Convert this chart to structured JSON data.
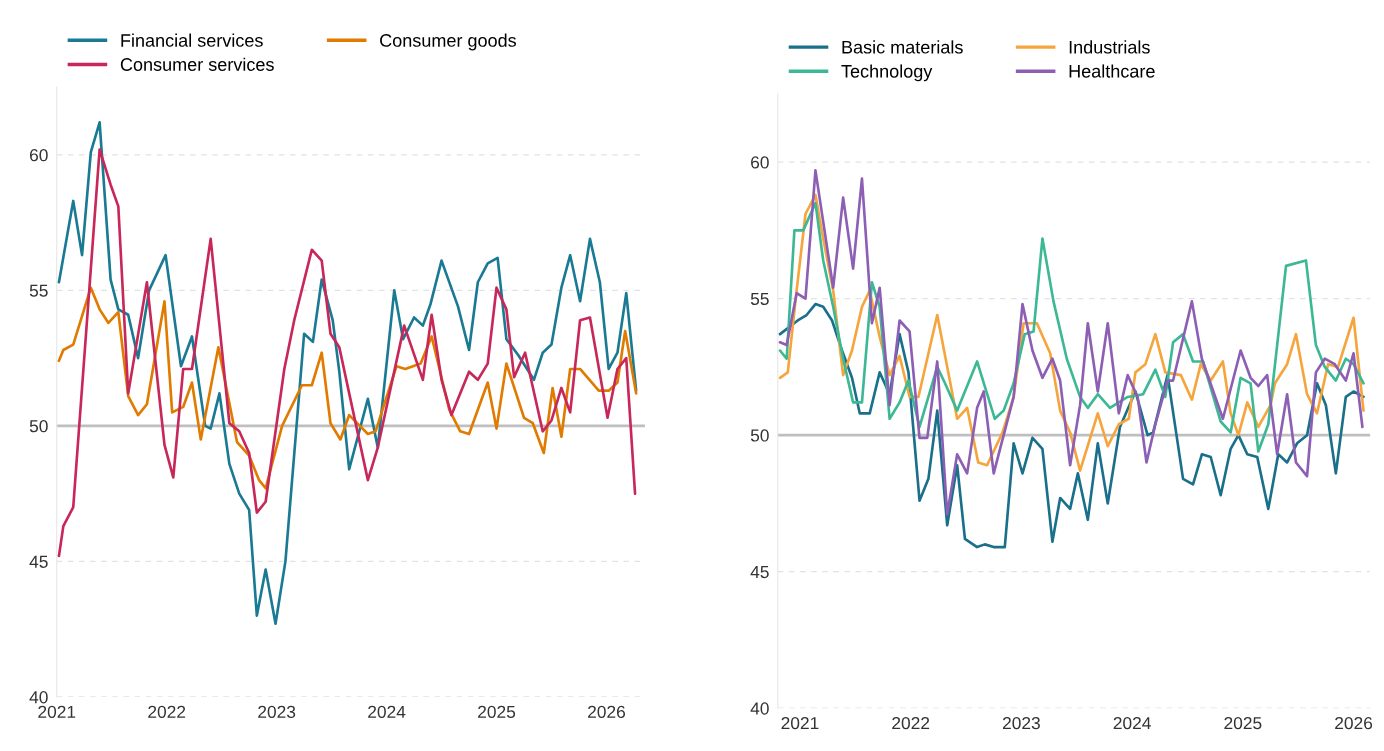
{
  "chart_data": [
    {
      "type": "line",
      "xlim": [
        2021,
        2026.35
      ],
      "xticks": [
        2021,
        2022,
        2023,
        2024,
        2025,
        2026
      ],
      "ylim": [
        40,
        62.5
      ],
      "yticks": [
        40,
        45,
        50,
        55,
        60
      ],
      "grid": "y",
      "legend": "top left",
      "line_style": "solid",
      "ref_lines": [
        {
          "axis": "y",
          "value": 50,
          "color": "#bfbfbf"
        }
      ],
      "series": [
        {
          "name": "Financial services",
          "color": "#1a7a94",
          "x": [
            2021.02,
            2021.15,
            2021.23,
            2021.31,
            2021.39,
            2021.49,
            2021.56,
            2021.65,
            2021.74,
            2021.84,
            2021.99,
            2022.13,
            2022.23,
            2022.35,
            2022.4,
            2022.48,
            2022.57,
            2022.66,
            2022.75,
            2022.82,
            2022.9,
            2022.99,
            2023.08,
            2023.25,
            2023.33,
            2023.41,
            2023.51,
            2023.57,
            2023.66,
            2023.83,
            2023.92,
            2024.07,
            2024.15,
            2024.25,
            2024.33,
            2024.4,
            2024.5,
            2024.65,
            2024.75,
            2024.83,
            2024.92,
            2025.01,
            2025.09,
            2025.2,
            2025.34,
            2025.42,
            2025.5,
            2025.59,
            2025.67,
            2025.76,
            2025.85,
            2025.94,
            2026.02,
            2026.1,
            2026.18,
            2026.27
          ],
          "values": [
            55.3,
            58.3,
            56.3,
            60.1,
            61.2,
            55.4,
            54.3,
            54.1,
            52.5,
            55.0,
            56.3,
            52.2,
            53.3,
            50.0,
            49.9,
            51.2,
            48.6,
            47.5,
            46.9,
            43.0,
            44.7,
            42.7,
            45.0,
            53.4,
            53.1,
            55.4,
            53.9,
            52.0,
            48.4,
            51.0,
            49.2,
            55.0,
            53.2,
            54.0,
            53.7,
            54.5,
            56.1,
            54.4,
            52.8,
            55.3,
            56.0,
            56.2,
            53.2,
            52.6,
            51.7,
            52.7,
            53.0,
            55.1,
            56.3,
            54.6,
            56.9,
            55.3,
            52.1,
            52.7,
            54.9,
            51.3
          ]
        },
        {
          "name": "Consumer goods",
          "color": "#e07b00",
          "x": [
            2021.02,
            2021.06,
            2021.15,
            2021.31,
            2021.39,
            2021.47,
            2021.56,
            2021.65,
            2021.74,
            2021.82,
            2021.98,
            2022.05,
            2022.15,
            2022.23,
            2022.31,
            2022.47,
            2022.64,
            2022.75,
            2022.84,
            2022.9,
            2023.05,
            2023.23,
            2023.32,
            2023.41,
            2023.49,
            2023.58,
            2023.66,
            2023.83,
            2023.9,
            2024.09,
            2024.17,
            2024.31,
            2024.41,
            2024.57,
            2024.67,
            2024.75,
            2024.92,
            2025.0,
            2025.09,
            2025.25,
            2025.33,
            2025.43,
            2025.51,
            2025.59,
            2025.67,
            2025.76,
            2025.93,
            2026.02,
            2026.1,
            2026.17,
            2026.27
          ],
          "values": [
            52.4,
            52.8,
            53.0,
            55.1,
            54.3,
            53.8,
            54.2,
            51.1,
            50.4,
            50.8,
            54.6,
            50.5,
            50.7,
            51.6,
            49.5,
            52.9,
            49.4,
            48.9,
            48.0,
            47.7,
            50.0,
            51.5,
            51.5,
            52.7,
            50.1,
            49.5,
            50.4,
            49.7,
            49.8,
            52.2,
            52.1,
            52.3,
            53.3,
            50.6,
            49.8,
            49.7,
            51.6,
            49.9,
            52.3,
            50.3,
            50.1,
            49.0,
            51.4,
            49.6,
            52.1,
            52.1,
            51.3,
            51.3,
            51.6,
            53.5,
            51.2
          ]
        },
        {
          "name": "Consumer services",
          "color": "#c8275a",
          "x": [
            2021.02,
            2021.06,
            2021.15,
            2021.39,
            2021.49,
            2021.56,
            2021.65,
            2021.82,
            2021.98,
            2022.06,
            2022.15,
            2022.23,
            2022.4,
            2022.57,
            2022.66,
            2022.75,
            2022.82,
            2022.9,
            2023.07,
            2023.16,
            2023.32,
            2023.41,
            2023.49,
            2023.57,
            2023.66,
            2023.83,
            2023.92,
            2024.16,
            2024.33,
            2024.41,
            2024.5,
            2024.59,
            2024.75,
            2024.83,
            2024.92,
            2025.0,
            2025.09,
            2025.16,
            2025.26,
            2025.42,
            2025.5,
            2025.59,
            2025.67,
            2025.76,
            2025.85,
            2026.01,
            2026.1,
            2026.18,
            2026.26
          ],
          "values": [
            45.2,
            46.3,
            47.0,
            60.2,
            58.9,
            58.1,
            51.2,
            55.3,
            49.3,
            48.1,
            52.1,
            52.1,
            56.9,
            50.1,
            49.8,
            49.0,
            46.8,
            47.2,
            52.1,
            53.9,
            56.5,
            56.1,
            53.4,
            52.9,
            51.2,
            48.0,
            49.2,
            53.7,
            51.7,
            54.1,
            51.7,
            50.4,
            52.0,
            51.7,
            52.3,
            55.1,
            54.3,
            51.8,
            52.7,
            49.8,
            50.2,
            51.4,
            50.5,
            53.9,
            54.0,
            50.3,
            52.1,
            52.5,
            47.5
          ]
        }
      ]
    },
    {
      "type": "line",
      "xlim": [
        2020.8,
        2026.15
      ],
      "xticks": [
        2021,
        2022,
        2023,
        2024,
        2025,
        2026
      ],
      "ylim": [
        40,
        62.5
      ],
      "yticks": [
        40,
        45,
        50,
        55,
        60
      ],
      "grid": "y",
      "legend": "top left",
      "line_style": "solid",
      "ref_lines": [
        {
          "axis": "y",
          "value": 50,
          "color": "#bfbfbf"
        }
      ],
      "series": [
        {
          "name": "Basic materials",
          "color": "#1a6f8a",
          "x": [
            2020.82,
            2020.98,
            2021.06,
            2021.14,
            2021.21,
            2021.29,
            2021.38,
            2021.47,
            2021.54,
            2021.63,
            2021.72,
            2021.81,
            2021.9,
            2021.98,
            2022.08,
            2022.16,
            2022.24,
            2022.33,
            2022.42,
            2022.49,
            2022.6,
            2022.67,
            2022.75,
            2022.85,
            2022.93,
            2023.01,
            2023.1,
            2023.19,
            2023.28,
            2023.35,
            2023.44,
            2023.51,
            2023.6,
            2023.69,
            2023.78,
            2023.89,
            2024.03,
            2024.14,
            2024.19,
            2024.32,
            2024.46,
            2024.55,
            2024.63,
            2024.71,
            2024.8,
            2024.89,
            2024.96,
            2025.04,
            2025.13,
            2025.23,
            2025.32,
            2025.4,
            2025.49,
            2025.58,
            2025.67,
            2025.75,
            2025.84,
            2025.93,
            2026.0,
            2026.09
          ],
          "values": [
            53.7,
            54.2,
            54.4,
            54.8,
            54.7,
            54.2,
            53.1,
            52.1,
            50.8,
            50.8,
            52.3,
            51.5,
            53.7,
            52.3,
            47.6,
            48.4,
            50.9,
            46.7,
            48.9,
            46.2,
            45.9,
            46.0,
            45.9,
            45.9,
            49.7,
            48.6,
            49.9,
            49.5,
            46.1,
            47.7,
            47.3,
            48.6,
            46.9,
            49.7,
            47.5,
            50.3,
            51.6,
            50.0,
            50.1,
            52.2,
            48.4,
            48.2,
            49.3,
            49.2,
            47.8,
            49.5,
            50.0,
            49.3,
            49.2,
            47.3,
            49.3,
            49.0,
            49.7,
            50.0,
            51.9,
            51.1,
            48.6,
            51.4,
            51.6,
            51.4
          ]
        },
        {
          "name": "Industrials",
          "color": "#f5a53c",
          "x": [
            2020.82,
            2020.89,
            2020.97,
            2021.05,
            2021.14,
            2021.21,
            2021.3,
            2021.39,
            2021.47,
            2021.56,
            2021.63,
            2021.72,
            2021.81,
            2021.9,
            2021.99,
            2022.07,
            2022.24,
            2022.42,
            2022.51,
            2022.61,
            2022.69,
            2022.83,
            2022.93,
            2023.02,
            2023.14,
            2023.26,
            2023.35,
            2023.44,
            2023.53,
            2023.69,
            2023.78,
            2023.88,
            2023.97,
            2024.03,
            2024.12,
            2024.21,
            2024.3,
            2024.44,
            2024.54,
            2024.62,
            2024.71,
            2024.82,
            2024.89,
            2024.96,
            2025.04,
            2025.14,
            2025.25,
            2025.29,
            2025.4,
            2025.48,
            2025.58,
            2025.67,
            2025.77,
            2025.86,
            2026.0,
            2026.09
          ],
          "values": [
            52.1,
            52.3,
            55.3,
            58.1,
            58.8,
            57.2,
            55.3,
            52.2,
            53.1,
            54.7,
            55.3,
            53.6,
            52.2,
            52.9,
            51.4,
            51.4,
            54.4,
            50.6,
            51.0,
            49.0,
            48.9,
            50.1,
            51.4,
            54.1,
            54.1,
            53.0,
            50.9,
            50.1,
            48.7,
            50.8,
            49.6,
            50.4,
            50.6,
            52.3,
            52.6,
            53.7,
            52.3,
            52.2,
            51.3,
            52.6,
            52.0,
            52.7,
            50.8,
            50.0,
            51.2,
            50.3,
            51.1,
            51.9,
            52.6,
            53.7,
            51.5,
            50.8,
            52.6,
            52.5,
            54.3,
            50.9
          ]
        },
        {
          "name": "Technology",
          "color": "#3cb894",
          "x": [
            2020.82,
            2020.88,
            2020.95,
            2021.03,
            2021.14,
            2021.21,
            2021.3,
            2021.39,
            2021.48,
            2021.56,
            2021.65,
            2021.72,
            2021.81,
            2021.9,
            2021.98,
            2022.08,
            2022.24,
            2022.31,
            2022.42,
            2022.6,
            2022.76,
            2022.84,
            2022.93,
            2023.03,
            2023.11,
            2023.19,
            2023.29,
            2023.41,
            2023.53,
            2023.6,
            2023.69,
            2023.8,
            2023.96,
            2024.1,
            2024.21,
            2024.3,
            2024.37,
            2024.46,
            2024.55,
            2024.64,
            2024.8,
            2024.89,
            2024.98,
            2025.07,
            2025.14,
            2025.23,
            2025.39,
            2025.57,
            2025.66,
            2025.74,
            2025.84,
            2025.93,
            2026.0,
            2026.09
          ],
          "values": [
            53.1,
            52.8,
            57.5,
            57.5,
            58.5,
            56.4,
            54.7,
            52.8,
            51.2,
            51.2,
            55.6,
            54.7,
            50.6,
            51.2,
            52.0,
            50.3,
            52.5,
            51.9,
            50.9,
            52.7,
            50.6,
            50.9,
            51.9,
            53.7,
            53.8,
            57.2,
            54.9,
            52.8,
            51.4,
            51.0,
            51.5,
            51.0,
            51.4,
            51.5,
            52.4,
            51.4,
            53.4,
            53.7,
            52.7,
            52.7,
            50.5,
            50.1,
            52.1,
            51.9,
            49.4,
            50.4,
            56.2,
            56.4,
            53.3,
            52.5,
            52.0,
            52.8,
            52.6,
            51.9
          ]
        },
        {
          "name": "Healthcare",
          "color": "#8c5fb4",
          "x": [
            2020.82,
            2020.88,
            2020.97,
            2021.05,
            2021.14,
            2021.3,
            2021.39,
            2021.48,
            2021.56,
            2021.65,
            2021.72,
            2021.81,
            2021.9,
            2021.99,
            2022.08,
            2022.15,
            2022.24,
            2022.33,
            2022.42,
            2022.51,
            2022.6,
            2022.66,
            2022.75,
            2022.93,
            2023.01,
            2023.1,
            2023.19,
            2023.28,
            2023.35,
            2023.44,
            2023.53,
            2023.6,
            2023.69,
            2023.78,
            2023.88,
            2023.96,
            2024.05,
            2024.13,
            2024.21,
            2024.32,
            2024.37,
            2024.54,
            2024.63,
            2024.82,
            2024.98,
            2025.07,
            2025.14,
            2025.22,
            2025.31,
            2025.4,
            2025.48,
            2025.58,
            2025.66,
            2025.74,
            2025.83,
            2025.93,
            2026.0,
            2026.08
          ],
          "values": [
            53.4,
            53.3,
            55.2,
            55.0,
            59.7,
            55.4,
            58.7,
            56.1,
            59.4,
            54.1,
            55.4,
            51.1,
            54.2,
            53.8,
            49.9,
            49.9,
            52.7,
            47.1,
            49.3,
            48.6,
            51.0,
            51.6,
            48.6,
            51.4,
            54.8,
            53.1,
            52.1,
            52.8,
            52.0,
            48.9,
            51.1,
            54.1,
            51.6,
            54.1,
            50.8,
            52.2,
            51.4,
            49.0,
            50.4,
            52.0,
            52.0,
            54.9,
            52.8,
            50.6,
            53.1,
            52.1,
            51.8,
            52.2,
            49.3,
            51.5,
            49.0,
            48.5,
            52.3,
            52.8,
            52.6,
            52.0,
            53.0,
            50.3
          ]
        }
      ]
    }
  ]
}
